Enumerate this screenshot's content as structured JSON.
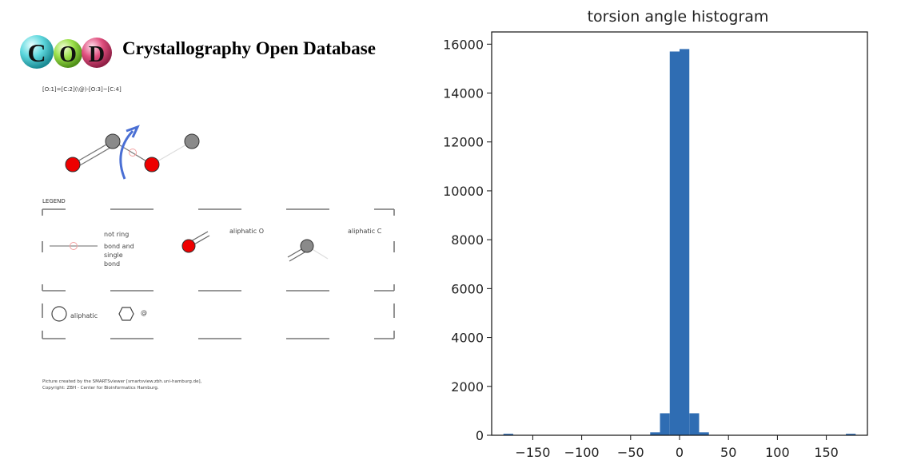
{
  "header": {
    "logo_text": "COD",
    "title": "Crystallography Open Database"
  },
  "molecule": {
    "smarts": "[O:1]=[C:2](\\@)-[O:3]~[C:4]",
    "atom_colors": {
      "oxygen": "#ee0000",
      "carbon": "#8a8a8a"
    },
    "arrow_color": "#4a6fd4"
  },
  "legend": {
    "title": "LEGEND",
    "not_ring_label": "not ring",
    "bond_and_single_label": "bond and\nsingle\nbond",
    "aliphatic_o_label": "aliphatic O",
    "aliphatic_c_label": "aliphatic C",
    "aliphatic_label": "aliphatic",
    "ring_symbol": "@"
  },
  "credit": {
    "line1": "Picture created by the SMARTSviewer [smartsview.zbh.uni-hamburg.de],",
    "line2": "Copyright: ZBH - Center for Bioinformatics Hamburg."
  },
  "chart_data": {
    "type": "bar",
    "title": "torsion angle histogram",
    "xlabel": "",
    "ylabel": "",
    "color": "#2f6db3",
    "xlim": [
      -192,
      192
    ],
    "ylim": [
      0,
      16500
    ],
    "xticks": [
      -150,
      -100,
      -50,
      0,
      50,
      100,
      150
    ],
    "xtick_labels": [
      "−150",
      "−100",
      "−50",
      "0",
      "50",
      "100",
      "150"
    ],
    "yticks": [
      0,
      2000,
      4000,
      6000,
      8000,
      10000,
      12000,
      14000,
      16000
    ],
    "bin_edges": [
      -180,
      -170,
      -160,
      -150,
      -140,
      -130,
      -120,
      -110,
      -100,
      -90,
      -80,
      -70,
      -60,
      -50,
      -40,
      -30,
      -20,
      -10,
      0,
      10,
      20,
      30,
      40,
      50,
      60,
      70,
      80,
      90,
      100,
      110,
      120,
      130,
      140,
      150,
      160,
      170,
      180
    ],
    "values": [
      60,
      5,
      0,
      0,
      0,
      0,
      0,
      0,
      0,
      0,
      0,
      0,
      0,
      0,
      5,
      120,
      900,
      15700,
      15800,
      900,
      120,
      5,
      0,
      0,
      0,
      0,
      0,
      0,
      0,
      0,
      0,
      0,
      0,
      0,
      5,
      60
    ],
    "grid": false
  }
}
